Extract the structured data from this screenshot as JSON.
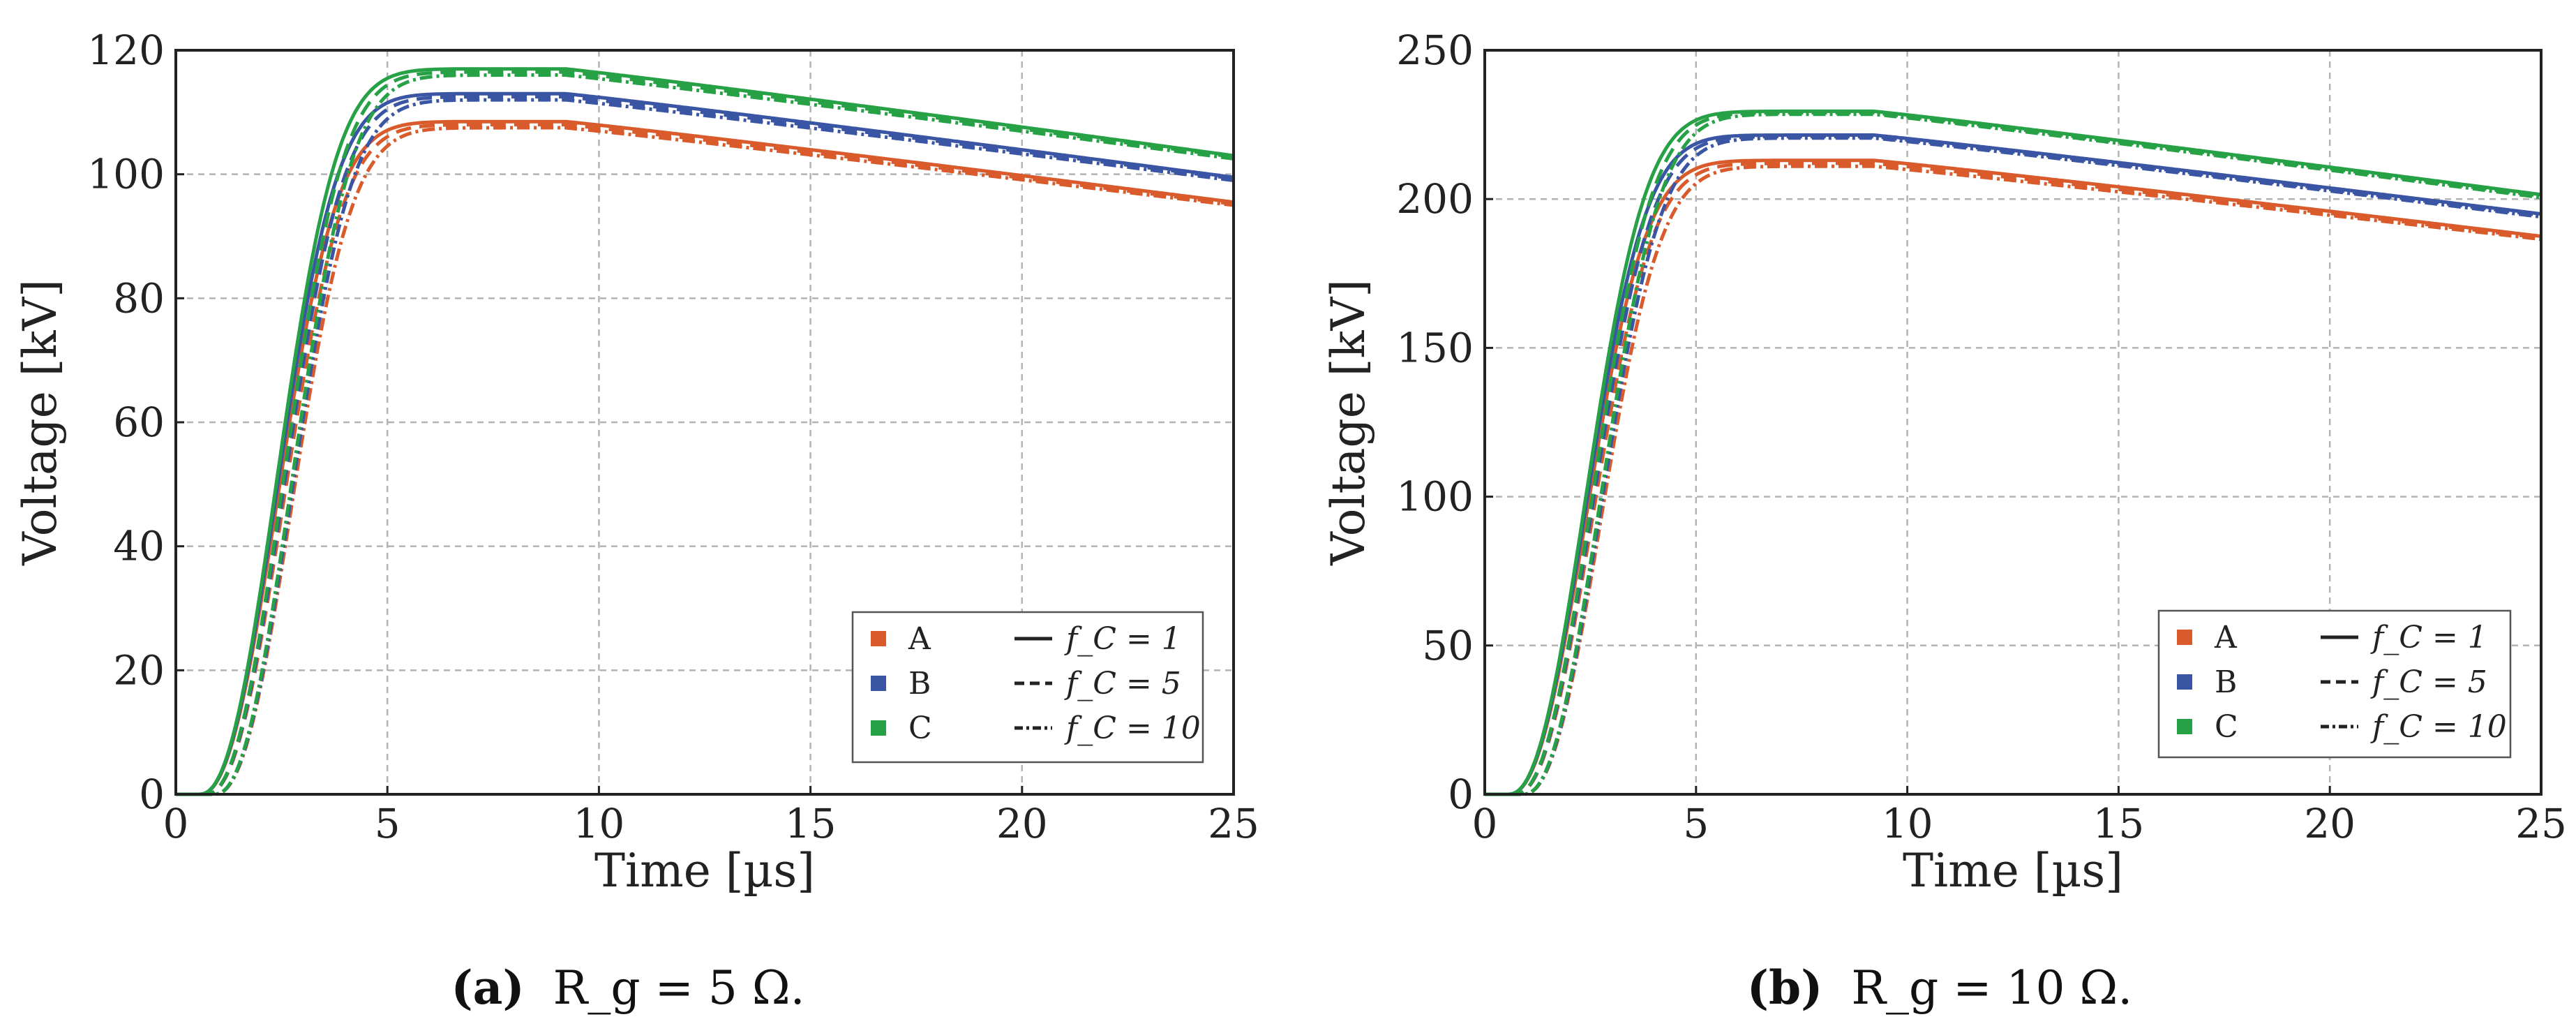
{
  "chart_data": [
    {
      "type": "line",
      "panel": "a",
      "caption_label": "(a)",
      "caption_text": "R_g = 5 Ω.",
      "xlabel": "Time [µs]",
      "ylabel": "Voltage [kV]",
      "xlim": [
        0,
        25
      ],
      "ylim": [
        0,
        120
      ],
      "xticks": [
        0,
        5,
        10,
        15,
        20,
        25
      ],
      "yticks": [
        0,
        20,
        40,
        60,
        80,
        100,
        120
      ],
      "grid": true,
      "legend_position": "bottom-right",
      "legend": {
        "colors": [
          {
            "label": "A",
            "color": "#d95a2b"
          },
          {
            "label": "B",
            "color": "#3a55a4"
          },
          {
            "label": "C",
            "color": "#26a146"
          }
        ],
        "styles": [
          {
            "label": "f_C = 1",
            "style": "solid"
          },
          {
            "label": "f_C = 5",
            "style": "dashed"
          },
          {
            "label": "f_C = 10",
            "style": "dashdot"
          }
        ]
      },
      "series": [
        {
          "name": "A, f_C = 1",
          "group": "A",
          "style": "solid",
          "peak": 108.5,
          "end": 95.5,
          "shift": 0.0
        },
        {
          "name": "A, f_C = 5",
          "group": "A",
          "style": "dashed",
          "peak": 108.0,
          "end": 95.2,
          "shift": 0.15
        },
        {
          "name": "A, f_C = 10",
          "group": "A",
          "style": "dashdot",
          "peak": 107.5,
          "end": 95.0,
          "shift": 0.35
        },
        {
          "name": "B, f_C = 1",
          "group": "B",
          "style": "solid",
          "peak": 113.0,
          "end": 99.5,
          "shift": 0.0
        },
        {
          "name": "B, f_C = 5",
          "group": "B",
          "style": "dashed",
          "peak": 112.5,
          "end": 99.3,
          "shift": 0.15
        },
        {
          "name": "B, f_C = 10",
          "group": "B",
          "style": "dashdot",
          "peak": 112.0,
          "end": 99.0,
          "shift": 0.35
        },
        {
          "name": "C, f_C = 1",
          "group": "C",
          "style": "solid",
          "peak": 117.0,
          "end": 103.0,
          "shift": 0.0
        },
        {
          "name": "C, f_C = 5",
          "group": "C",
          "style": "dashed",
          "peak": 116.5,
          "end": 102.8,
          "shift": 0.15
        },
        {
          "name": "C, f_C = 10",
          "group": "C",
          "style": "dashdot",
          "peak": 116.0,
          "end": 102.5,
          "shift": 0.35
        }
      ]
    },
    {
      "type": "line",
      "panel": "b",
      "caption_label": "(b)",
      "caption_text": "R_g = 10 Ω.",
      "xlabel": "Time [µs]",
      "ylabel": "Voltage [kV]",
      "xlim": [
        0,
        25
      ],
      "ylim": [
        0,
        250
      ],
      "xticks": [
        0,
        5,
        10,
        15,
        20,
        25
      ],
      "yticks": [
        0,
        50,
        100,
        150,
        200,
        250
      ],
      "grid": true,
      "legend_position": "bottom-right",
      "legend": {
        "colors": [
          {
            "label": "A",
            "color": "#d95a2b"
          },
          {
            "label": "B",
            "color": "#3a55a4"
          },
          {
            "label": "C",
            "color": "#26a146"
          }
        ],
        "styles": [
          {
            "label": "f_C = 1",
            "style": "solid"
          },
          {
            "label": "f_C = 5",
            "style": "dashed"
          },
          {
            "label": "f_C = 10",
            "style": "dashdot"
          }
        ]
      },
      "series": [
        {
          "name": "A, f_C = 1",
          "group": "A",
          "style": "solid",
          "peak": 213.0,
          "end": 187.5,
          "shift": 0.0
        },
        {
          "name": "A, f_C = 5",
          "group": "A",
          "style": "dashed",
          "peak": 212.0,
          "end": 187.0,
          "shift": 0.15
        },
        {
          "name": "A, f_C = 10",
          "group": "A",
          "style": "dashdot",
          "peak": 211.0,
          "end": 186.5,
          "shift": 0.35
        },
        {
          "name": "B, f_C = 1",
          "group": "B",
          "style": "solid",
          "peak": 221.5,
          "end": 195.0,
          "shift": 0.0
        },
        {
          "name": "B, f_C = 5",
          "group": "B",
          "style": "dashed",
          "peak": 221.0,
          "end": 194.5,
          "shift": 0.15
        },
        {
          "name": "B, f_C = 10",
          "group": "B",
          "style": "dashdot",
          "peak": 220.5,
          "end": 194.0,
          "shift": 0.35
        },
        {
          "name": "C, f_C = 1",
          "group": "C",
          "style": "solid",
          "peak": 229.5,
          "end": 201.5,
          "shift": 0.0
        },
        {
          "name": "C, f_C = 5",
          "group": "C",
          "style": "dashed",
          "peak": 229.0,
          "end": 201.0,
          "shift": 0.15
        },
        {
          "name": "C, f_C = 10",
          "group": "C",
          "style": "dashdot",
          "peak": 228.5,
          "end": 200.5,
          "shift": 0.35
        }
      ]
    }
  ]
}
